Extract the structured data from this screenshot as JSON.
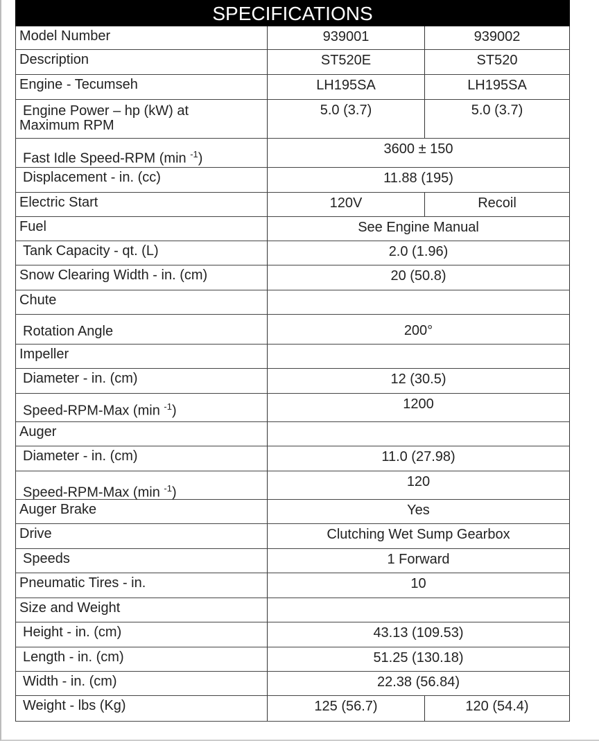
{
  "title": "SPECIFICATIONS",
  "rows": [
    {
      "label": "Model Number",
      "values": [
        "939001",
        "939002"
      ]
    },
    {
      "label": "Description",
      "values": [
        "ST520E",
        "ST520"
      ]
    },
    {
      "label": "Engine - Tecumseh",
      "values": [
        "LH195SA",
        "LH195SA"
      ]
    },
    {
      "label": "Engine Power – hp (kW) at",
      "label2": "Maximum RPM",
      "indent": true,
      "values": [
        "5.0 (3.7)",
        "5.0 (3.7)"
      ]
    },
    {
      "label": "Fast Idle Speed-RPM (min ",
      "sup": "-1",
      "suffix": ")",
      "indent": true,
      "value": "3600 ± 150"
    },
    {
      "label": "Displacement - in. (cc)",
      "indent": true,
      "value": "11.88 (195)"
    },
    {
      "label": "Electric Start",
      "values": [
        "120V",
        "Recoil"
      ]
    },
    {
      "label": "Fuel",
      "value": "See Engine Manual"
    },
    {
      "label": "Tank Capacity - qt. (L)",
      "indent": true,
      "value": "2.0 (1.96)"
    },
    {
      "label": "Snow Clearing Width - in. (cm)",
      "value": "20 (50.8)"
    },
    {
      "label": "Chute",
      "value": ""
    },
    {
      "label": "Rotation Angle",
      "indent": true,
      "value": "200°"
    },
    {
      "label": "Impeller",
      "value": ""
    },
    {
      "label": "Diameter - in. (cm)",
      "indent": true,
      "value": "12 (30.5)"
    },
    {
      "label": "Speed-RPM-Max (min ",
      "sup": "-1",
      "suffix": ")",
      "indent": true,
      "value": "1200"
    },
    {
      "label": "Auger",
      "value": ""
    },
    {
      "label": "Diameter - in. (cm)",
      "indent": true,
      "value": "11.0 (27.98)"
    },
    {
      "label": "Speed-RPM-Max (min ",
      "sup": "-1",
      "suffix": ")",
      "indent": true,
      "value": "120"
    },
    {
      "label": "Auger Brake",
      "value": "Yes"
    },
    {
      "label": "Drive",
      "value": "Clutching Wet Sump Gearbox"
    },
    {
      "label": "Speeds",
      "indent": true,
      "value": "1 Forward"
    },
    {
      "label": "Pneumatic Tires - in.",
      "value": "10"
    },
    {
      "label": "Size and Weight",
      "value": ""
    },
    {
      "label": "Height - in. (cm)",
      "indent": true,
      "value": "43.13 (109.53)"
    },
    {
      "label": "Length - in. (cm)",
      "indent": true,
      "value": "51.25 (130.18)"
    },
    {
      "label": "Width - in. (cm)",
      "indent": true,
      "value": "22.38 (56.84)"
    },
    {
      "label": "Weight - lbs (Kg)",
      "indent": true,
      "values": [
        "125 (56.7)",
        "120 (54.4)"
      ]
    }
  ]
}
